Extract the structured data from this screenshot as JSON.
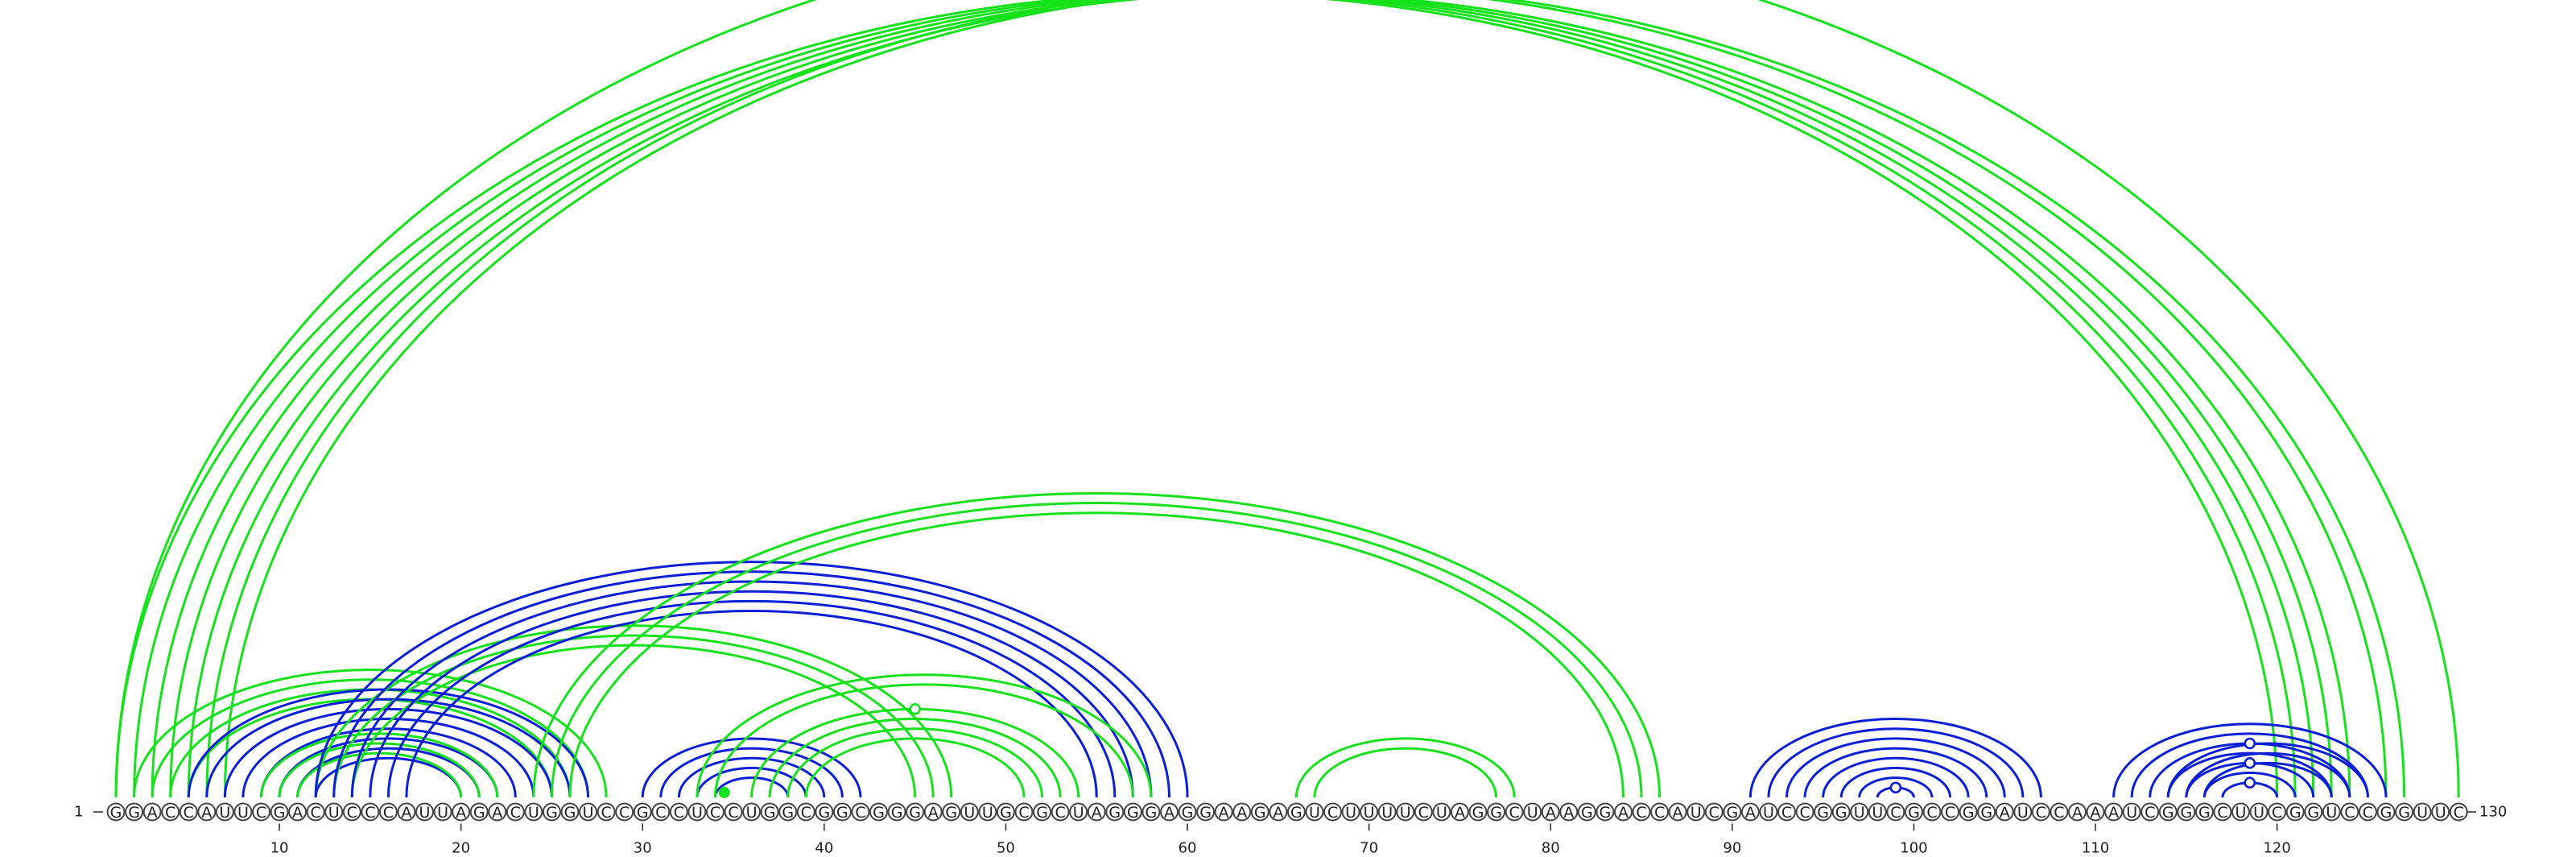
{
  "sequence": "GGACCAUUCGACUCCCAUUAGACUGGUCCGCCUCCUGGCGGCGGGAGUUGCGCUAGGGAGGAAGAGUCUUUUCUAGGCUAAGGACCAUCGAUCCGGUUCGCCGGAUCCAAAUCGGGCUUCGGUCCGGUUC",
  "start_label": "1",
  "end_label": "130",
  "ticks": [
    10,
    20,
    30,
    40,
    50,
    60,
    70,
    80,
    90,
    100,
    110,
    120
  ],
  "colors": {
    "blue": "#0a1fd6",
    "green": "#16e21c"
  },
  "arc_groups": [
    {
      "color": "green",
      "pairs": [
        [
          1,
          120
        ],
        [
          2,
          121
        ],
        [
          3,
          122
        ],
        [
          4,
          123
        ],
        [
          5,
          124
        ]
      ]
    },
    {
      "color": "green",
      "pairs": [
        [
          6,
          126
        ],
        [
          7,
          127
        ]
      ]
    },
    {
      "color": "green",
      "pairs": [
        [
          1,
          130
        ]
      ]
    },
    {
      "color": "green",
      "pairs": [
        [
          2,
          28
        ],
        [
          3,
          27
        ],
        [
          4,
          26
        ],
        [
          5,
          25
        ]
      ]
    },
    {
      "color": "blue",
      "pairs": [
        [
          5,
          27
        ],
        [
          6,
          26
        ],
        [
          7,
          25
        ],
        [
          8,
          24
        ],
        [
          9,
          23
        ],
        [
          10,
          22
        ],
        [
          11,
          21
        ],
        [
          12,
          20
        ]
      ]
    },
    {
      "color": "green",
      "pairs": [
        [
          9,
          22
        ],
        [
          10,
          21
        ],
        [
          11,
          20
        ]
      ]
    },
    {
      "color": "green",
      "pairs": [
        [
          12,
          47
        ],
        [
          13,
          46
        ],
        [
          14,
          45
        ]
      ]
    },
    {
      "color": "blue",
      "pairs": [
        [
          12,
          60
        ],
        [
          13,
          59
        ],
        [
          14,
          58
        ],
        [
          15,
          57
        ],
        [
          16,
          56
        ],
        [
          17,
          55
        ]
      ]
    },
    {
      "color": "green",
      "pairs": [
        [
          24,
          86
        ],
        [
          25,
          85
        ],
        [
          26,
          84
        ]
      ]
    },
    {
      "color": "blue",
      "pairs": [
        [
          30,
          42
        ],
        [
          31,
          41
        ],
        [
          32,
          40
        ],
        [
          33,
          39
        ],
        [
          34,
          38
        ]
      ]
    },
    {
      "color": "green",
      "pairs": [
        [
          33,
          58
        ],
        [
          34,
          57
        ]
      ]
    },
    {
      "color": "green",
      "pairs": [
        [
          36,
          54
        ],
        [
          37,
          53
        ],
        [
          38,
          52
        ],
        [
          39,
          51
        ]
      ]
    },
    {
      "color": "green",
      "pairs": [
        [
          66,
          78
        ],
        [
          67,
          77
        ]
      ]
    },
    {
      "color": "blue",
      "pairs": [
        [
          91,
          107
        ],
        [
          92,
          106
        ],
        [
          93,
          105
        ],
        [
          94,
          104
        ],
        [
          95,
          103
        ],
        [
          96,
          102
        ],
        [
          97,
          101
        ],
        [
          98,
          100
        ]
      ]
    },
    {
      "color": "blue",
      "pairs": [
        [
          111,
          126
        ],
        [
          112,
          125
        ],
        [
          113,
          124
        ],
        [
          114,
          123
        ],
        [
          115,
          122
        ],
        [
          116,
          121
        ],
        [
          117,
          120
        ]
      ]
    },
    {
      "color": "blue",
      "pairs": [
        [
          114,
          125
        ],
        [
          115,
          124
        ],
        [
          116,
          123
        ]
      ]
    }
  ],
  "markers": [
    {
      "pair": [
        6,
        126
      ],
      "color": "green",
      "style": "open"
    },
    {
      "pair": [
        36,
        54
      ],
      "color": "green",
      "style": "open"
    },
    {
      "pair": [
        34,
        35
      ],
      "color": "green",
      "style": "solid"
    },
    {
      "pair": [
        98,
        100
      ],
      "color": "blue",
      "style": "open"
    },
    {
      "pair": [
        117,
        120
      ],
      "color": "blue",
      "style": "open"
    },
    {
      "pair": [
        115,
        122
      ],
      "color": "blue",
      "style": "open"
    },
    {
      "pair": [
        113,
        124
      ],
      "color": "blue",
      "style": "open"
    }
  ]
}
